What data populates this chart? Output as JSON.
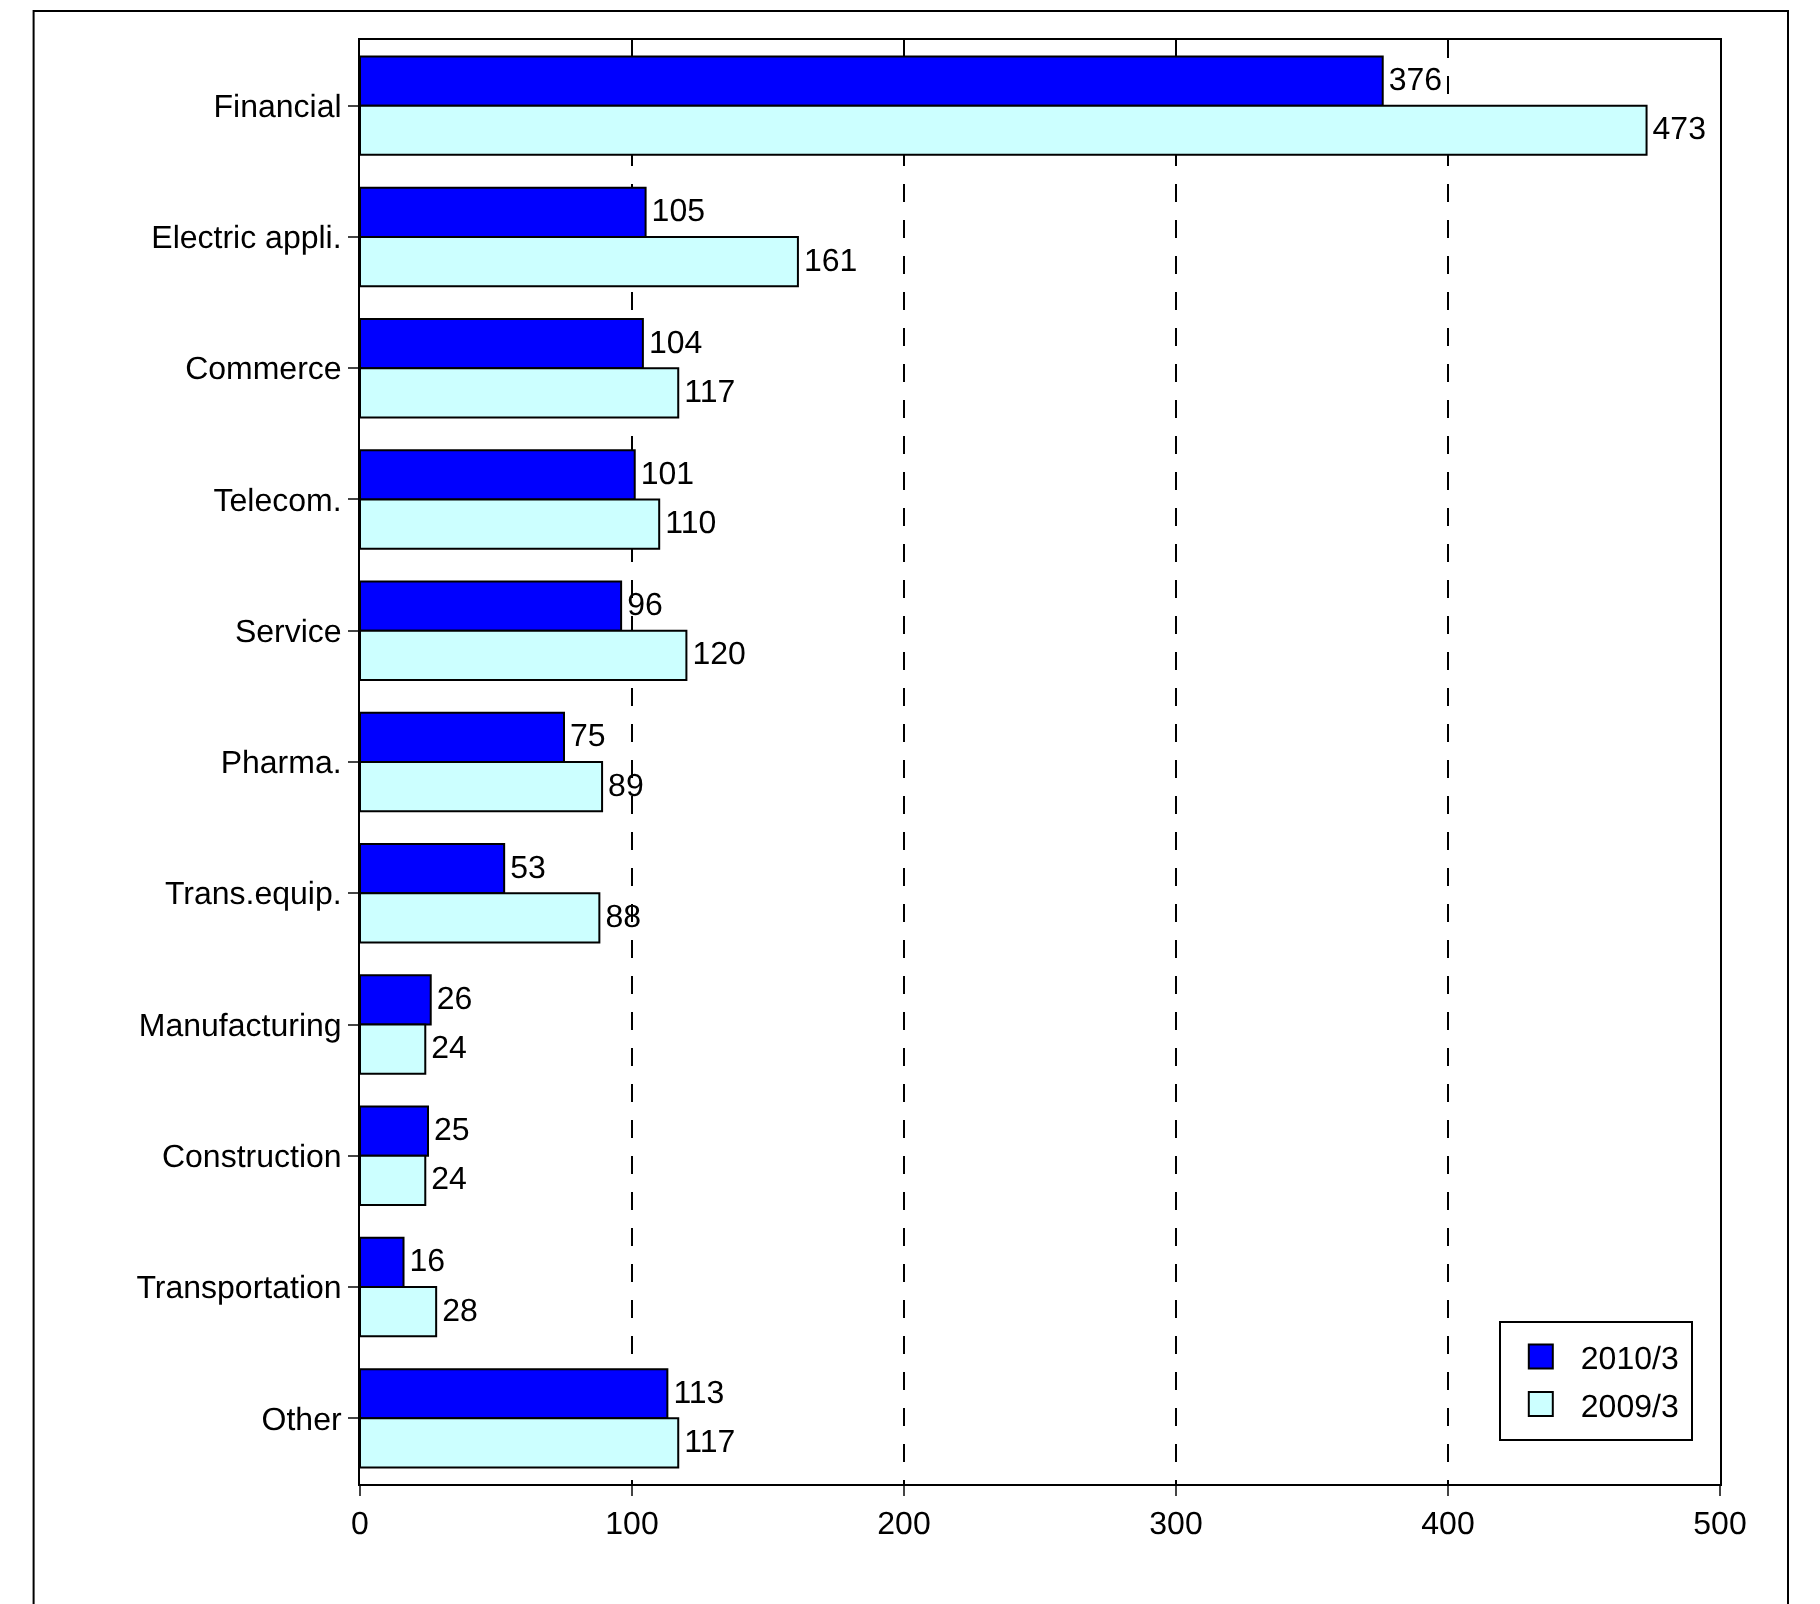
{
  "chart_data": {
    "type": "bar",
    "orientation": "horizontal",
    "categories": [
      "Financial",
      "Electric appli.",
      "Commerce",
      "Telecom.",
      "Service",
      "Pharma.",
      "Trans.equip.",
      "Manufacturing",
      "Construction",
      "Transportation",
      "Other"
    ],
    "series": [
      {
        "name": "2010/3",
        "color": "#0000ff",
        "values": [
          376,
          105,
          104,
          101,
          96,
          75,
          53,
          26,
          25,
          16,
          113
        ]
      },
      {
        "name": "2009/3",
        "color": "#ccffff",
        "values": [
          473,
          161,
          117,
          110,
          120,
          89,
          88,
          24,
          24,
          28,
          117
        ]
      }
    ],
    "xlim": [
      0,
      500
    ],
    "xticks": [
      0,
      100,
      200,
      300,
      400,
      500
    ],
    "grid": "x",
    "legend": "bottom right",
    "data_labels": true
  }
}
